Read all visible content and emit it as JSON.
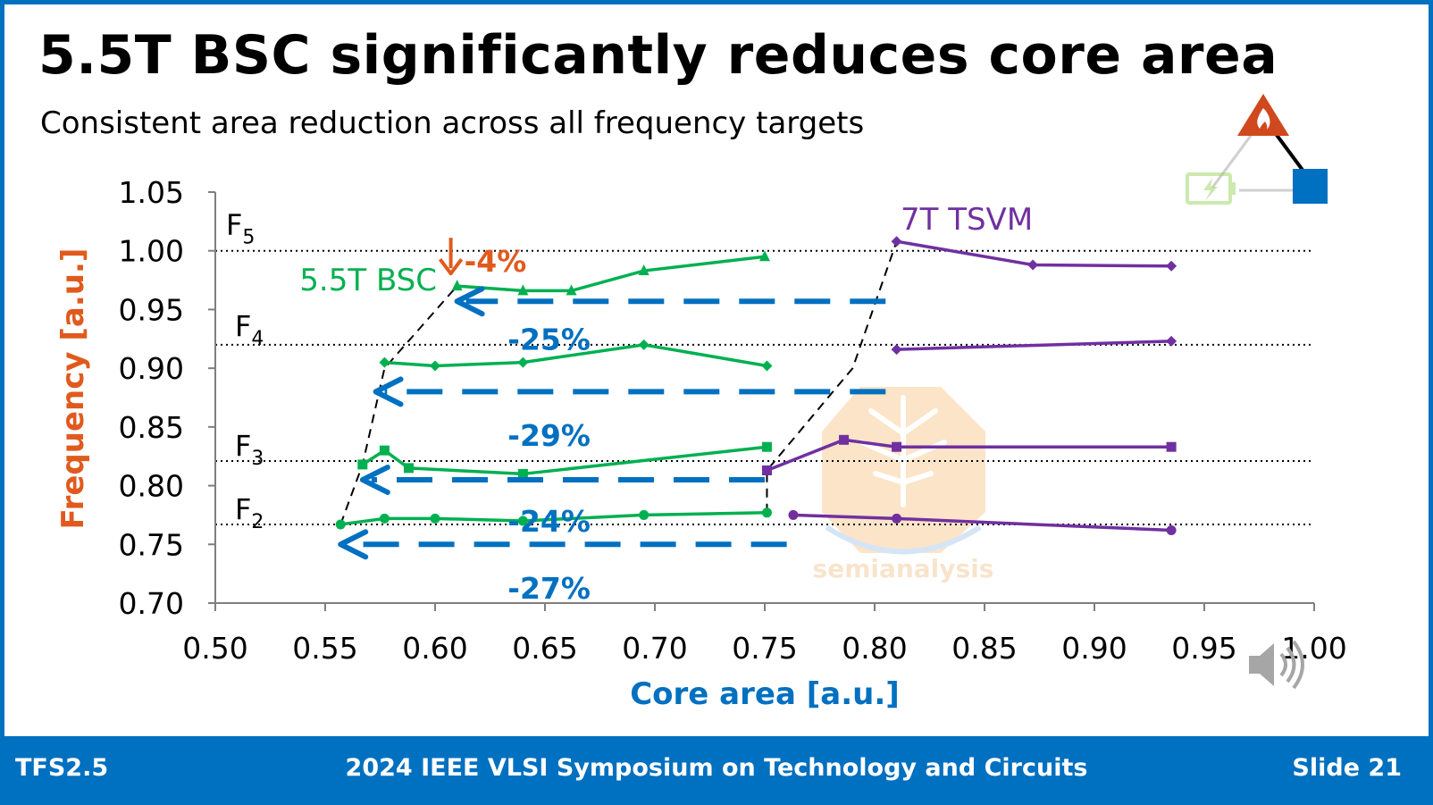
{
  "slide": {
    "title": "5.5T BSC significantly reduces core area",
    "subtitle": "Consistent area reduction across all frequency targets",
    "footer_left": "TFS2.5",
    "footer_center": "2024 IEEE VLSI Symposium on Technology and Circuits",
    "footer_right": "Slide 21",
    "watermark": "semianalysis"
  },
  "colors": {
    "accent_blue": "#0070c0",
    "bsc_green": "#00b050",
    "tsvm_purple": "#7030a0",
    "highlight_orange": "#e05a1e"
  },
  "icons": [
    "fire-triangle-icon",
    "blue-square-icon",
    "battery-icon",
    "speaker-icon"
  ],
  "chart_data": {
    "type": "line",
    "title": "",
    "xlabel": "Core area [a.u.]",
    "ylabel": "Frequency [a.u.]",
    "xlim": [
      0.5,
      1.0
    ],
    "ylim": [
      0.7,
      1.05
    ],
    "x_ticks": [
      "0.50",
      "0.55",
      "0.60",
      "0.65",
      "0.70",
      "0.75",
      "0.80",
      "0.85",
      "0.90",
      "0.95",
      "1.00"
    ],
    "y_ticks": [
      "0.70",
      "0.75",
      "0.80",
      "0.85",
      "0.90",
      "0.95",
      "1.00",
      "1.05"
    ],
    "grid": false,
    "frequency_targets": [
      {
        "label": "F",
        "sub": "2",
        "y": 0.767
      },
      {
        "label": "F",
        "sub": "3",
        "y": 0.821
      },
      {
        "label": "F",
        "sub": "4",
        "y": 0.92
      },
      {
        "label": "F",
        "sub": "5",
        "y": 1.0
      }
    ],
    "series": [
      {
        "name": "5.5T BSC",
        "group": "bsc",
        "marker": "triangle",
        "points": [
          [
            0.61,
            0.97
          ],
          [
            0.64,
            0.966
          ],
          [
            0.662,
            0.966
          ],
          [
            0.695,
            0.983
          ],
          [
            0.75,
            0.995
          ]
        ]
      },
      {
        "name": "",
        "group": "bsc",
        "marker": "diamond",
        "points": [
          [
            0.577,
            0.905
          ],
          [
            0.6,
            0.902
          ],
          [
            0.64,
            0.905
          ],
          [
            0.695,
            0.92
          ],
          [
            0.751,
            0.902
          ]
        ]
      },
      {
        "name": "",
        "group": "bsc",
        "marker": "square",
        "points": [
          [
            0.567,
            0.818
          ],
          [
            0.577,
            0.83
          ],
          [
            0.588,
            0.815
          ],
          [
            0.64,
            0.81
          ],
          [
            0.751,
            0.833
          ]
        ]
      },
      {
        "name": "",
        "group": "bsc",
        "marker": "circle",
        "points": [
          [
            0.557,
            0.767
          ],
          [
            0.577,
            0.772
          ],
          [
            0.6,
            0.772
          ],
          [
            0.64,
            0.77
          ],
          [
            0.695,
            0.775
          ],
          [
            0.751,
            0.777
          ]
        ]
      },
      {
        "name": "7T TSVM",
        "group": "tsvm",
        "marker": "diamond",
        "points": [
          [
            0.81,
            1.008
          ],
          [
            0.872,
            0.988
          ],
          [
            0.935,
            0.987
          ]
        ]
      },
      {
        "name": "",
        "group": "tsvm",
        "marker": "diamond",
        "points": [
          [
            0.81,
            0.916
          ],
          [
            0.935,
            0.923
          ]
        ]
      },
      {
        "name": "",
        "group": "tsvm",
        "marker": "square",
        "points": [
          [
            0.751,
            0.813
          ],
          [
            0.786,
            0.839
          ],
          [
            0.81,
            0.833
          ],
          [
            0.935,
            0.833
          ]
        ]
      },
      {
        "name": "",
        "group": "tsvm",
        "marker": "circle",
        "points": [
          [
            0.763,
            0.775
          ],
          [
            0.81,
            0.772
          ],
          [
            0.935,
            0.762
          ]
        ]
      }
    ],
    "frontiers": [
      {
        "group": "bsc",
        "points": [
          [
            0.557,
            0.767
          ],
          [
            0.567,
            0.818
          ],
          [
            0.577,
            0.9
          ],
          [
            0.61,
            0.97
          ]
        ]
      },
      {
        "group": "tsvm",
        "points": [
          [
            0.751,
            0.777
          ],
          [
            0.751,
            0.813
          ],
          [
            0.79,
            0.9
          ],
          [
            0.81,
            1.008
          ]
        ]
      }
    ],
    "reductions": [
      {
        "label": "-25%",
        "x_from": 0.805,
        "x_to": 0.61,
        "y": 0.957,
        "label_x": 0.66,
        "label_y": 0.925
      },
      {
        "label": "-29%",
        "x_from": 0.805,
        "x_to": 0.573,
        "y": 0.88,
        "label_x": 0.66,
        "label_y": 0.843
      },
      {
        "label": "-24%",
        "x_from": 0.75,
        "x_to": 0.567,
        "y": 0.805,
        "label_x": 0.66,
        "label_y": 0.77
      },
      {
        "label": "-27%",
        "x_from": 0.76,
        "x_to": 0.557,
        "y": 0.75,
        "label_x": 0.66,
        "label_y": 0.713
      }
    ],
    "highlight": {
      "label": "-4%",
      "x": 0.61,
      "y": 0.97
    }
  }
}
